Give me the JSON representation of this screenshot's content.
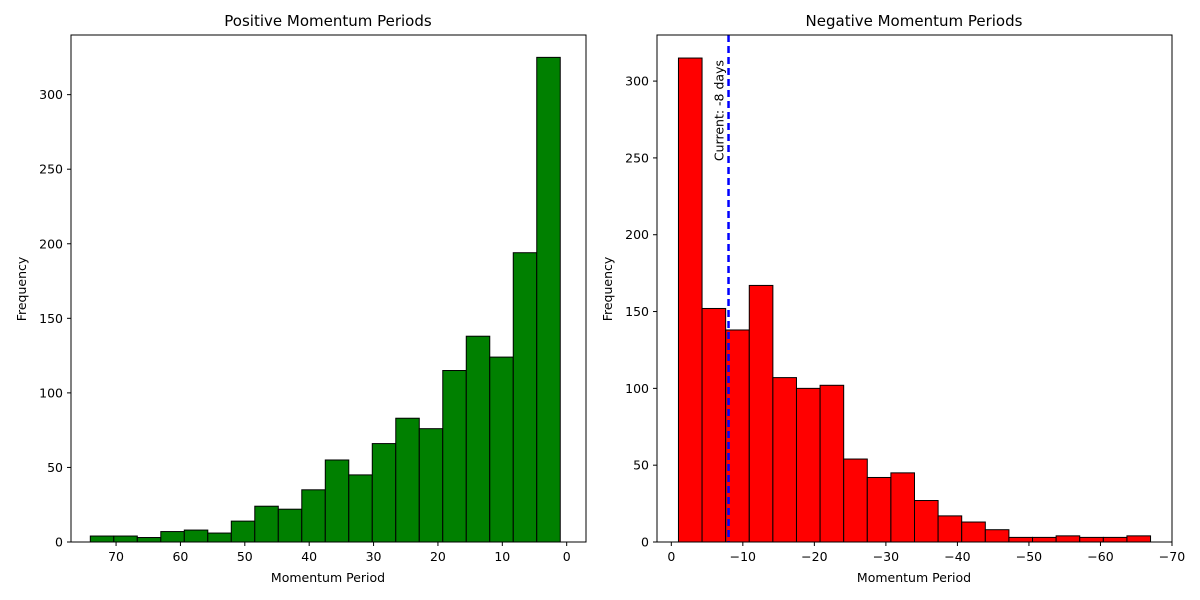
{
  "chart_data": [
    {
      "type": "bar",
      "title": "Positive Momentum Periods",
      "xlabel": "Momentum Period",
      "ylabel": "Frequency",
      "x_inverted": true,
      "xlim": [
        77,
        -3
      ],
      "ylim": [
        0,
        340
      ],
      "xticks": [
        70,
        60,
        50,
        40,
        30,
        20,
        10,
        0
      ],
      "yticks": [
        0,
        50,
        100,
        150,
        200,
        250,
        300
      ],
      "bar_color": "#008000",
      "edge_color": "#000000",
      "bin_edges": [
        74,
        70.35,
        66.7,
        63.05,
        59.4,
        55.75,
        52.1,
        48.45,
        44.8,
        41.15,
        37.5,
        33.85,
        30.2,
        26.55,
        22.9,
        19.25,
        15.6,
        11.95,
        8.3,
        4.65,
        1
      ],
      "values": [
        4,
        4,
        3,
        7,
        8,
        6,
        14,
        24,
        22,
        35,
        55,
        45,
        66,
        83,
        76,
        115,
        138,
        124,
        194,
        325
      ]
    },
    {
      "type": "bar",
      "title": "Negative Momentum Periods",
      "xlabel": "Momentum Period",
      "ylabel": "Frequency",
      "x_inverted": true,
      "xlim": [
        2,
        -70
      ],
      "ylim": [
        0,
        330
      ],
      "xticks": [
        0,
        -10,
        -20,
        -30,
        -40,
        -50,
        -60,
        -70
      ],
      "xtick_labels": [
        "0",
        "−10",
        "−20",
        "−30",
        "−40",
        "−50",
        "−60",
        "−70"
      ],
      "yticks": [
        0,
        50,
        100,
        150,
        200,
        250,
        300
      ],
      "bar_color": "#ff0000",
      "edge_color": "#000000",
      "bin_edges": [
        -1,
        -4.3,
        -7.6,
        -10.9,
        -14.2,
        -17.5,
        -20.8,
        -24.1,
        -27.4,
        -30.7,
        -34,
        -37.3,
        -40.6,
        -43.9,
        -47.2,
        -50.5,
        -53.8,
        -57.1,
        -60.4,
        -63.7,
        -67
      ],
      "values": [
        315,
        152,
        138,
        167,
        107,
        100,
        102,
        54,
        42,
        45,
        27,
        17,
        13,
        8,
        3,
        3,
        4,
        3,
        3,
        4
      ],
      "current_line": {
        "x": -8,
        "color": "#0000ff",
        "label": "Current: -8 days"
      }
    }
  ]
}
